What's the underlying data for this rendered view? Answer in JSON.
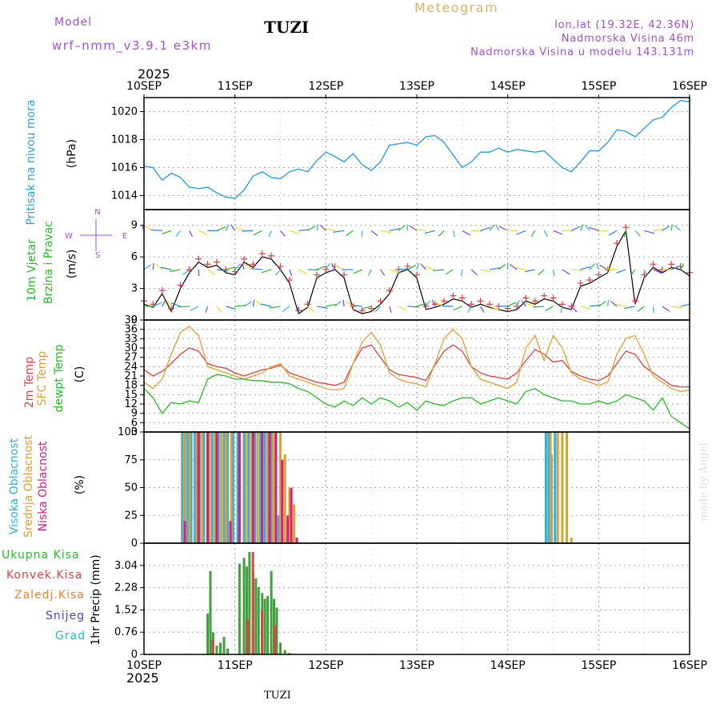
{
  "header": {
    "model_label": "Model",
    "model_name": "wrf–nmm_v3.9.1  e3km",
    "station": "TUZI",
    "meteogram": "Meteogram",
    "lonlat": "lon,lat (19.32E, 42.36N)",
    "elevation": "Nadmorska Visina 46m",
    "model_elevation": "Nadmorska Visina u modelu 143.131m",
    "year_top": "2025",
    "year_bottom": "2025",
    "footer_station": "TUZI",
    "credit": "made by Angel"
  },
  "x_ticks": [
    "10SEP",
    "11SEP",
    "12SEP",
    "13SEP",
    "14SEP",
    "15SEP",
    "16SEP"
  ],
  "panel_labels": {
    "pressure": {
      "title": "Pritisak na nivou mora",
      "unit": "(hPa)"
    },
    "wind": {
      "title1": "10m Vjetar",
      "title2": "Brzina i Pravac",
      "unit": "(m/s)",
      "compass_n": "N",
      "compass_s": "S",
      "compass_w": "W",
      "compass_e": "E"
    },
    "temp": {
      "t1": "2m Temp",
      "t2": "SFC Temp",
      "t3": "dewpt Temp",
      "unit": "(C)"
    },
    "cloud": {
      "c1": "Visoka Oblacnost",
      "c2": "Srednja Oblacnost",
      "c3": "Niska Oblacnost",
      "unit": "(%)"
    },
    "precip": {
      "l1": "Ukupna Kisa",
      "l2": "Konvek.Kisa",
      "l3": "Zaledj.Kisa",
      "l4": "Snijeg",
      "l5": "Grad",
      "unit": "1hr Precip (mm)"
    }
  },
  "colors": {
    "pressure": "#2aa0e6",
    "temp2m": "#e04040",
    "sfc": "#e0a030",
    "dewpt": "#20c020",
    "high_cloud": "#30b0e0",
    "mid_cloud": "#e0a030",
    "low_cloud": "#d02080",
    "total_rain": "#40a040",
    "conv_rain": "#e04040",
    "freezing": "#f08030",
    "snow": "#4040e0",
    "hail": "#20c0c0",
    "wind_label": "#20c020",
    "purple": "#a64dd6"
  },
  "chart_data": [
    {
      "type": "line",
      "name": "pressure",
      "ylabel": "(hPa)",
      "ylim": [
        1013,
        1021
      ],
      "yticks": [
        1014,
        1016,
        1018,
        1020
      ],
      "x_days": [
        0,
        0.1,
        0.2,
        0.3,
        0.4,
        0.5,
        0.6,
        0.7,
        0.8,
        0.9,
        1.0,
        1.1,
        1.2,
        1.3,
        1.4,
        1.5,
        1.6,
        1.7,
        1.8,
        1.9,
        2.0,
        2.1,
        2.2,
        2.3,
        2.4,
        2.5,
        2.6,
        2.7,
        2.8,
        2.9,
        3.0,
        3.1,
        3.2,
        3.3,
        3.4,
        3.5,
        3.6,
        3.7,
        3.8,
        3.9,
        4.0,
        4.1,
        4.2,
        4.3,
        4.4,
        4.5,
        4.6,
        4.7,
        4.8,
        4.9,
        5.0,
        5.1,
        5.2,
        5.3,
        5.4,
        5.5,
        5.6,
        5.7,
        5.8,
        5.9,
        6.0
      ],
      "values": [
        1016.1,
        1016.0,
        1015.1,
        1015.6,
        1015.3,
        1014.6,
        1014.5,
        1014.6,
        1014.2,
        1013.9,
        1013.8,
        1014.4,
        1015.4,
        1015.7,
        1015.3,
        1015.2,
        1015.7,
        1015.9,
        1015.7,
        1016.5,
        1017.1,
        1016.8,
        1016.4,
        1017.0,
        1016.2,
        1015.8,
        1016.4,
        1017.6,
        1017.7,
        1017.8,
        1017.6,
        1018.2,
        1018.3,
        1017.8,
        1016.9,
        1016.0,
        1016.4,
        1017.1,
        1017.1,
        1017.4,
        1017.1,
        1017.3,
        1017.2,
        1017.1,
        1017.2,
        1016.6,
        1016.0,
        1015.7,
        1016.4,
        1017.2,
        1017.2,
        1017.8,
        1018.7,
        1018.6,
        1018.2,
        1018.8,
        1019.4,
        1019.6,
        1020.3,
        1020.8,
        1020.7
      ]
    },
    {
      "type": "line",
      "name": "wind",
      "ylabel": "(m/s)",
      "ylim": [
        0,
        10.5
      ],
      "yticks": [
        0,
        3,
        6,
        9
      ],
      "x_days": [
        0,
        0.1,
        0.2,
        0.3,
        0.4,
        0.5,
        0.6,
        0.7,
        0.8,
        0.9,
        1.0,
        1.1,
        1.2,
        1.3,
        1.4,
        1.5,
        1.6,
        1.7,
        1.8,
        1.9,
        2.0,
        2.1,
        2.2,
        2.3,
        2.4,
        2.5,
        2.6,
        2.7,
        2.8,
        2.9,
        3.0,
        3.1,
        3.2,
        3.3,
        3.4,
        3.5,
        3.6,
        3.7,
        3.8,
        3.9,
        4.0,
        4.1,
        4.2,
        4.3,
        4.4,
        4.5,
        4.6,
        4.7,
        4.8,
        4.9,
        5.0,
        5.1,
        5.2,
        5.3,
        5.4,
        5.5,
        5.6,
        5.7,
        5.8,
        5.9,
        6.0
      ],
      "speed": [
        1.5,
        1.2,
        2.5,
        0.8,
        3.0,
        4.5,
        5.5,
        5.0,
        5.2,
        4.5,
        4.3,
        5.5,
        5.0,
        6.0,
        5.8,
        4.8,
        3.5,
        0.6,
        1.2,
        4.0,
        4.5,
        4.8,
        4.0,
        1.0,
        0.6,
        0.8,
        1.5,
        2.5,
        4.5,
        4.8,
        4.0,
        1.0,
        1.2,
        1.5,
        2.0,
        1.8,
        1.2,
        1.5,
        1.2,
        1.0,
        0.8,
        1.0,
        1.8,
        1.5,
        2.0,
        1.8,
        1.2,
        1.0,
        3.2,
        3.5,
        4.0,
        4.5,
        7.0,
        8.5,
        1.5,
        4.0,
        5.0,
        4.5,
        5.0,
        4.8,
        4.2
      ],
      "gust_markers": "red crosses near speed line"
    },
    {
      "type": "line",
      "name": "temperature",
      "ylabel": "(C)",
      "ylim": [
        3,
        39
      ],
      "yticks": [
        3,
        6,
        9,
        12,
        15,
        18,
        21,
        24,
        27,
        30,
        33,
        36,
        39
      ],
      "x_days": [
        0,
        0.1,
        0.2,
        0.3,
        0.4,
        0.5,
        0.6,
        0.7,
        0.8,
        0.9,
        1.0,
        1.1,
        1.2,
        1.3,
        1.4,
        1.5,
        1.6,
        1.7,
        1.8,
        1.9,
        2.0,
        2.1,
        2.2,
        2.3,
        2.4,
        2.5,
        2.6,
        2.7,
        2.8,
        2.9,
        3.0,
        3.1,
        3.2,
        3.3,
        3.4,
        3.5,
        3.6,
        3.7,
        3.8,
        3.9,
        4.0,
        4.1,
        4.2,
        4.3,
        4.4,
        4.5,
        4.6,
        4.7,
        4.8,
        4.9,
        5.0,
        5.1,
        5.2,
        5.3,
        5.4,
        5.5,
        5.6,
        5.7,
        5.8,
        5.9,
        6.0
      ],
      "series": [
        {
          "name": "2m Temp",
          "values": [
            23,
            21,
            22.5,
            25,
            28,
            30,
            29,
            25,
            24,
            23.5,
            22,
            21,
            22,
            23,
            23.5,
            24.5,
            22,
            21,
            20,
            19,
            18.5,
            18,
            19,
            25,
            30,
            31,
            27,
            23,
            21.5,
            21,
            20.5,
            19.5,
            24.5,
            29,
            31,
            29,
            24,
            22,
            21,
            20.5,
            20,
            22,
            26,
            29.5,
            28,
            25.5,
            26,
            22.5,
            21,
            20,
            19.5,
            21,
            25,
            29,
            28,
            24,
            22,
            20,
            18,
            17.5,
            17.5
          ]
        },
        {
          "name": "SFC Temp",
          "values": [
            19,
            17,
            20,
            28,
            35,
            37,
            34,
            24,
            23,
            22,
            21,
            20,
            21,
            22,
            24,
            25,
            21,
            20,
            19,
            18,
            17,
            16.5,
            17,
            25,
            32,
            35,
            31,
            22,
            20,
            19,
            18.5,
            17.5,
            25,
            33,
            36,
            33,
            24,
            20,
            19,
            18,
            17,
            19,
            30,
            34,
            26,
            34,
            30,
            22,
            20,
            19,
            18,
            19,
            28,
            33,
            34,
            28,
            21,
            19,
            17,
            16,
            16.5
          ]
        },
        {
          "name": "dewpt Temp",
          "values": [
            17,
            14,
            9,
            12.5,
            12,
            13,
            12.5,
            20,
            21.5,
            21,
            20,
            20,
            19.5,
            19.5,
            19,
            19,
            18.5,
            17,
            16,
            14,
            12,
            11,
            13,
            11.5,
            14,
            12,
            14,
            13,
            11,
            12.5,
            10,
            13,
            12,
            11.5,
            13,
            14,
            14,
            12,
            13,
            14,
            13,
            12,
            16,
            17,
            15,
            14,
            13,
            13,
            12,
            12,
            13,
            12,
            13,
            15,
            14,
            13,
            10,
            14,
            8,
            6,
            4
          ]
        }
      ]
    },
    {
      "type": "bar",
      "name": "cloud cover",
      "ylabel": "(%)",
      "ylim": [
        0,
        100
      ],
      "yticks": [
        0,
        25,
        50,
        75,
        100
      ],
      "series": [
        {
          "name": "Visoka Oblacnost",
          "x_days": [
            0.42,
            0.45,
            0.48,
            0.52,
            0.56,
            0.61,
            0.66,
            0.7,
            0.75,
            0.82,
            0.88,
            0.92,
            0.98,
            1.03,
            1.1,
            1.15,
            1.22,
            1.28,
            1.33,
            1.4,
            1.45,
            1.48,
            4.42,
            4.45,
            4.48,
            4.52
          ],
          "values": [
            100,
            100,
            100,
            100,
            100,
            100,
            100,
            100,
            100,
            100,
            100,
            100,
            100,
            100,
            100,
            100,
            100,
            100,
            100,
            100,
            100,
            25,
            100,
            100,
            80,
            100
          ]
        },
        {
          "name": "Srednja Oblacnost",
          "x_days": [
            0.44,
            0.5,
            0.58,
            0.64,
            0.72,
            0.78,
            0.85,
            0.9,
            0.96,
            1.05,
            1.12,
            1.18,
            1.25,
            1.3,
            1.36,
            1.42,
            1.5,
            1.55,
            1.6,
            1.65,
            4.47,
            4.55,
            4.6,
            4.65,
            4.7
          ],
          "values": [
            100,
            100,
            100,
            100,
            100,
            100,
            100,
            100,
            100,
            100,
            100,
            100,
            100,
            100,
            100,
            100,
            100,
            80,
            50,
            35,
            100,
            100,
            100,
            100,
            5
          ]
        },
        {
          "name": "Niska Oblacnost",
          "x_days": [
            0.45,
            0.6,
            0.7,
            0.8,
            0.95,
            1.05,
            1.2,
            1.3,
            1.38,
            1.45,
            1.52,
            1.58,
            1.62,
            1.68
          ],
          "values": [
            20,
            100,
            100,
            100,
            20,
            100,
            100,
            100,
            100,
            100,
            75,
            25,
            50,
            5
          ]
        }
      ]
    },
    {
      "type": "bar",
      "name": "precipitation",
      "ylabel": "1hr Precip (mm)",
      "ylim": [
        0,
        3.8
      ],
      "yticks": [
        0,
        0.76,
        1.52,
        2.28,
        3.04
      ],
      "series": [
        {
          "name": "Ukupna Kisa",
          "x_days": [
            0.7,
            0.73,
            0.76,
            0.8,
            0.84,
            0.88,
            0.92,
            1.05,
            1.1,
            1.13,
            1.16,
            1.2,
            1.23,
            1.26,
            1.3,
            1.33,
            1.36,
            1.4,
            1.43,
            1.46,
            1.5,
            1.55,
            1.6
          ],
          "values": [
            1.4,
            2.85,
            0.75,
            0.3,
            0.4,
            0.6,
            0.2,
            3.1,
            3.3,
            3.0,
            3.5,
            2.8,
            2.6,
            2.3,
            2.1,
            1.9,
            2.0,
            2.85,
            1.9,
            1.6,
            0.4,
            0.15,
            0.05
          ]
        },
        {
          "name": "Konvek.Kisa",
          "x_days": [
            0.74,
            1.12,
            1.18,
            1.28,
            1.42
          ],
          "values": [
            0.5,
            1.2,
            3.5,
            1.5,
            1.0
          ]
        }
      ]
    }
  ]
}
